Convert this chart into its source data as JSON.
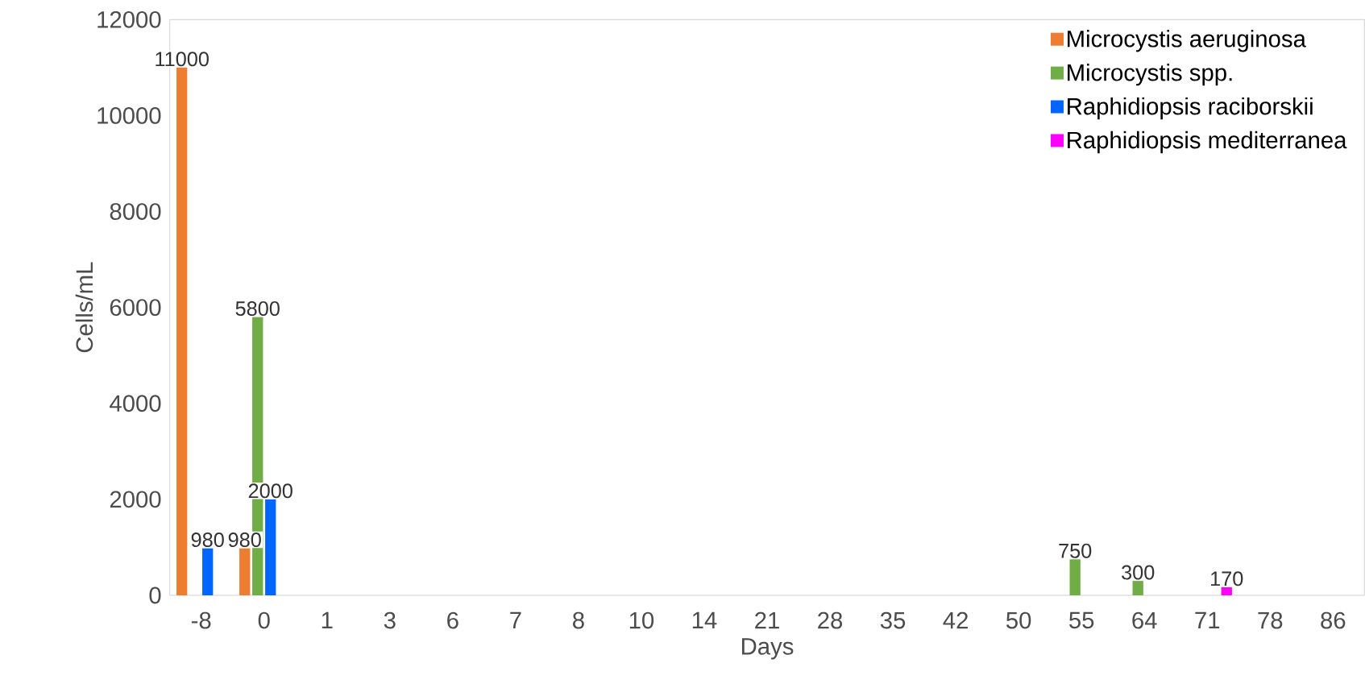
{
  "chart_data": {
    "type": "bar",
    "xlabel": "Days",
    "ylabel": "Cells/mL",
    "categories": [
      "-8",
      "0",
      "1",
      "3",
      "6",
      "7",
      "8",
      "10",
      "14",
      "21",
      "28",
      "35",
      "42",
      "50",
      "55",
      "64",
      "71",
      "78",
      "86"
    ],
    "series": [
      {
        "name": "Microcystis aeruginosa",
        "color": "#ed7d31",
        "values": [
          11000,
          980,
          null,
          null,
          null,
          null,
          null,
          null,
          null,
          null,
          null,
          null,
          null,
          null,
          null,
          null,
          null,
          null,
          null
        ]
      },
      {
        "name": "Microcystis spp.",
        "color": "#70ad47",
        "values": [
          null,
          5800,
          null,
          null,
          null,
          null,
          null,
          null,
          null,
          null,
          null,
          null,
          null,
          null,
          750,
          300,
          null,
          null,
          null
        ]
      },
      {
        "name": "Raphidiopsis raciborskii",
        "color": "#0066ff",
        "values": [
          980,
          2000,
          null,
          null,
          null,
          null,
          null,
          null,
          null,
          null,
          null,
          null,
          null,
          null,
          null,
          null,
          null,
          null,
          null
        ]
      },
      {
        "name": "Raphidiopsis mediterranea",
        "color": "#ff00ff",
        "values": [
          null,
          null,
          null,
          null,
          null,
          null,
          null,
          null,
          null,
          null,
          null,
          null,
          null,
          null,
          null,
          null,
          170,
          null,
          null
        ]
      }
    ],
    "ylim": [
      0,
      12000
    ],
    "yticks": [
      0,
      2000,
      4000,
      6000,
      8000,
      10000,
      12000
    ],
    "data_labels": true,
    "legend": "top right",
    "grid": false
  }
}
